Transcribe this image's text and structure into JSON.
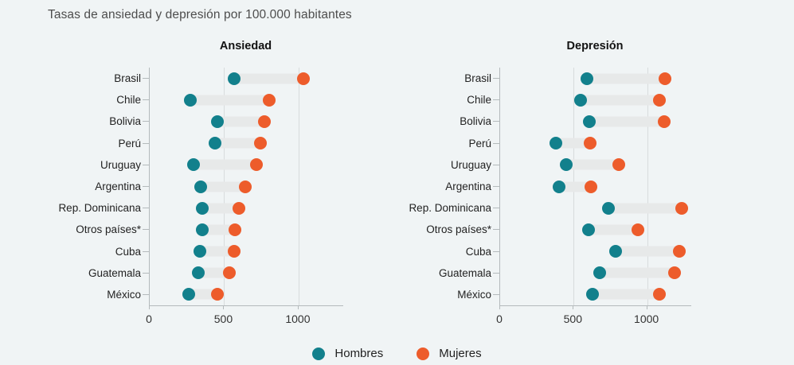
{
  "title": "Tasas de ansiedad y depresión por 100.000 habitantes",
  "legend": {
    "items": [
      {
        "label": "Hombres",
        "color": "#12808c"
      },
      {
        "label": "Mujeres",
        "color": "#ed5c2b"
      }
    ]
  },
  "chart_data": [
    {
      "type": "dumbbell",
      "title": "Ansiedad",
      "orientation": "horizontal",
      "categories": [
        "Brasil",
        "Chile",
        "Bolivia",
        "Perú",
        "Uruguay",
        "Argentina",
        "Rep. Dominicana",
        "Otros países*",
        "Cuba",
        "Guatemala",
        "México"
      ],
      "series": [
        {
          "name": "Hombres",
          "color": "#12808c",
          "values": [
            570,
            280,
            460,
            445,
            300,
            350,
            360,
            360,
            340,
            330,
            265
          ]
        },
        {
          "name": "Mujeres",
          "color": "#ed5c2b",
          "values": [
            1040,
            810,
            775,
            750,
            720,
            645,
            605,
            580,
            570,
            540,
            460
          ]
        }
      ],
      "xlim": [
        0,
        1300
      ],
      "xticks": [
        0,
        500,
        1000
      ],
      "grid": true,
      "legend_position": "bottom"
    },
    {
      "type": "dumbbell",
      "title": "Depresión",
      "orientation": "horizontal",
      "categories": [
        "Brasil",
        "Chile",
        "Bolivia",
        "Perú",
        "Uruguay",
        "Argentina",
        "Rep. Dominicana",
        "Otros países*",
        "Cuba",
        "Guatemala",
        "México"
      ],
      "series": [
        {
          "name": "Hombres",
          "color": "#12808c",
          "values": [
            595,
            555,
            610,
            385,
            455,
            405,
            740,
            605,
            790,
            685,
            635
          ]
        },
        {
          "name": "Mujeres",
          "color": "#ed5c2b",
          "values": [
            1125,
            1090,
            1120,
            615,
            810,
            625,
            1240,
            945,
            1225,
            1190,
            1090
          ]
        }
      ],
      "xlim": [
        0,
        1300
      ],
      "xticks": [
        0,
        500,
        1000
      ],
      "grid": true,
      "legend_position": "bottom"
    }
  ]
}
